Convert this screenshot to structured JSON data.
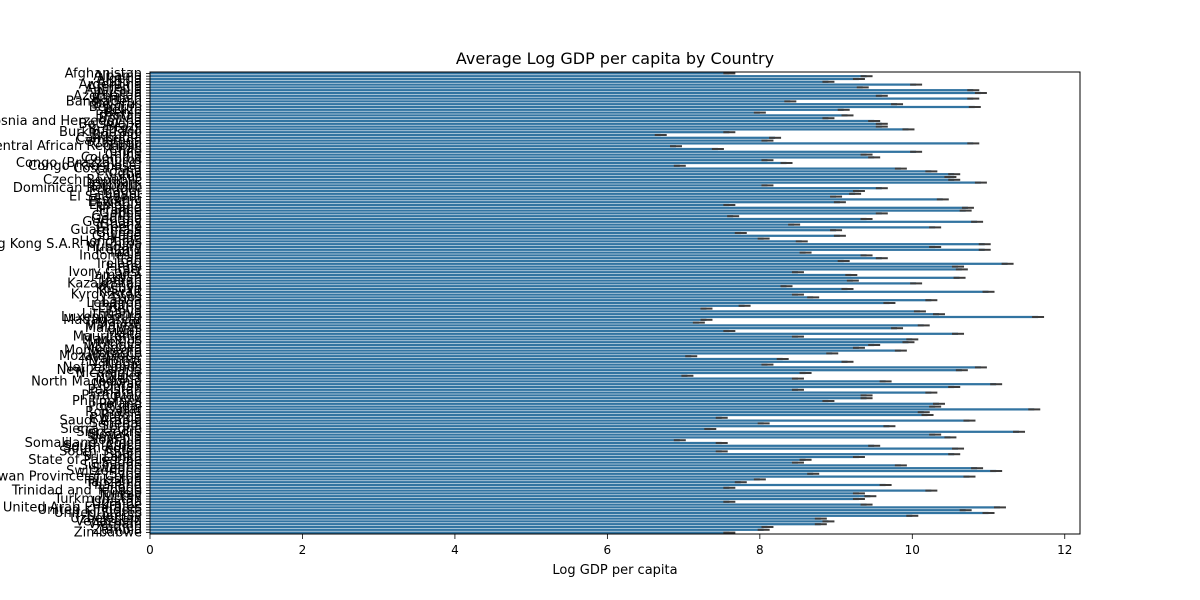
{
  "chart_data": {
    "type": "bar",
    "orientation": "horizontal",
    "title": "Average Log GDP per capita by Country",
    "xlabel": "Log GDP per capita",
    "ylabel": "",
    "xlim": [
      0,
      12.2
    ],
    "xticks": [
      0,
      2,
      4,
      6,
      8,
      10,
      12
    ],
    "bar_color": "#3274a1",
    "errorbar_color": "#3d3d3d",
    "grid": false,
    "categories": [
      "Afghanistan",
      "Albania",
      "Algeria",
      "Angola",
      "Argentina",
      "Armenia",
      "Australia",
      "Austria",
      "Azerbaijan",
      "Bahrain",
      "Bangladesh",
      "Belarus",
      "Belgium",
      "Belize",
      "Benin",
      "Bhutan",
      "Bolivia",
      "Bosnia and Herzegovina",
      "Botswana",
      "Brazil",
      "Bulgaria",
      "Burkina Faso",
      "Burundi",
      "Cambodia",
      "Cameroon",
      "Canada",
      "Central African Republic",
      "Chad",
      "Chile",
      "China",
      "Colombia",
      "Comoros",
      "Congo (Brazzaville)",
      "Congo (Kinshasa)",
      "Costa Rica",
      "Croatia",
      "Cuba",
      "Cyprus",
      "Czech Republic",
      "Denmark",
      "Djibouti",
      "Dominican Republic",
      "Ecuador",
      "Egypt",
      "El Salvador",
      "Estonia",
      "Eswatini",
      "Ethiopia",
      "Finland",
      "France",
      "Gabon",
      "Gambia",
      "Georgia",
      "Germany",
      "Ghana",
      "Greece",
      "Guatemala",
      "Guinea",
      "Guyana",
      "Haiti",
      "Honduras",
      "Hong Kong S.A.R. of China",
      "Hungary",
      "Iceland",
      "India",
      "Indonesia",
      "Iran",
      "Iraq",
      "Ireland",
      "Israel",
      "Italy",
      "Ivory Coast",
      "Jamaica",
      "Japan",
      "Jordan",
      "Kazakhstan",
      "Kenya",
      "Kosovo",
      "Kuwait",
      "Kyrgyzstan",
      "Laos",
      "Latvia",
      "Lebanon",
      "Lesotho",
      "Liberia",
      "Libya",
      "Lithuania",
      "Luxembourg",
      "Madagascar",
      "Malawi",
      "Malaysia",
      "Maldives",
      "Mali",
      "Malta",
      "Mauritania",
      "Mauritius",
      "Mexico",
      "Moldova",
      "Mongolia",
      "Montenegro",
      "Morocco",
      "Mozambique",
      "Myanmar",
      "Namibia",
      "Nepal",
      "Netherlands",
      "New Zealand",
      "Nicaragua",
      "Niger",
      "Nigeria",
      "North Macedonia",
      "Norway",
      "Oman",
      "Pakistan",
      "Panama",
      "Paraguay",
      "Peru",
      "Philippines",
      "Poland",
      "Portugal",
      "Qatar",
      "Romania",
      "Russia",
      "Rwanda",
      "Saudi Arabia",
      "Senegal",
      "Serbia",
      "Sierra Leone",
      "Singapore",
      "Slovakia",
      "Slovenia",
      "Somalia",
      "Somaliland region",
      "South Africa",
      "South Korea",
      "South Sudan",
      "Spain",
      "Sri Lanka",
      "State of Palestine",
      "Sudan",
      "Suriname",
      "Sweden",
      "Switzerland",
      "Syria",
      "Taiwan Province of China",
      "Tajikistan",
      "Tanzania",
      "Thailand",
      "Togo",
      "Trinidad and Tobago",
      "Tunisia",
      "Turkey",
      "Turkmenistan",
      "Uganda",
      "Ukraine",
      "United Arab Emirates",
      "United Kingdom",
      "United States",
      "Uruguay",
      "Uzbekistan",
      "Venezuela",
      "Vietnam",
      "Yemen",
      "Zambia",
      "Zimbabwe"
    ],
    "values": [
      7.6,
      9.4,
      9.3,
      8.9,
      10.05,
      9.35,
      10.8,
      10.9,
      9.6,
      10.8,
      8.4,
      9.8,
      10.82,
      9.1,
      8.0,
      9.15,
      8.9,
      9.5,
      9.6,
      9.6,
      9.95,
      7.6,
      6.7,
      8.2,
      8.1,
      10.8,
      6.9,
      7.45,
      10.05,
      9.4,
      9.5,
      8.1,
      8.35,
      6.95,
      9.85,
      10.25,
      10.55,
      10.5,
      10.55,
      10.9,
      8.1,
      9.6,
      9.3,
      9.25,
      9.0,
      10.4,
      9.05,
      7.6,
      10.73,
      10.7,
      9.6,
      7.65,
      9.4,
      10.85,
      8.45,
      10.3,
      9.0,
      7.75,
      9.05,
      8.05,
      8.55,
      10.95,
      10.3,
      10.95,
      8.6,
      9.4,
      9.6,
      9.1,
      11.25,
      10.6,
      10.65,
      8.5,
      9.2,
      10.62,
      9.22,
      10.05,
      8.35,
      9.15,
      11.0,
      8.5,
      8.7,
      10.25,
      9.7,
      7.8,
      7.3,
      10.1,
      10.35,
      11.65,
      7.3,
      7.2,
      10.15,
      9.8,
      7.6,
      10.6,
      8.5,
      10.0,
      9.95,
      9.5,
      9.3,
      9.85,
      8.95,
      7.1,
      8.3,
      9.15,
      8.1,
      10.9,
      10.65,
      8.6,
      7.05,
      8.5,
      9.65,
      11.1,
      10.55,
      8.5,
      10.25,
      9.4,
      9.4,
      8.9,
      10.35,
      10.3,
      11.6,
      10.15,
      10.2,
      7.5,
      10.75,
      8.05,
      9.7,
      7.35,
      11.4,
      10.3,
      10.5,
      6.95,
      7.5,
      9.5,
      10.6,
      7.5,
      10.55,
      9.3,
      8.6,
      8.5,
      9.85,
      10.85,
      11.1,
      8.7,
      10.75,
      8.0,
      7.75,
      9.65,
      7.6,
      10.25,
      9.3,
      9.45,
      9.3,
      7.6,
      9.4,
      11.15,
      10.7,
      11.0,
      10.0,
      8.8,
      8.9,
      8.8,
      8.1,
      8.05,
      7.6
    ]
  }
}
